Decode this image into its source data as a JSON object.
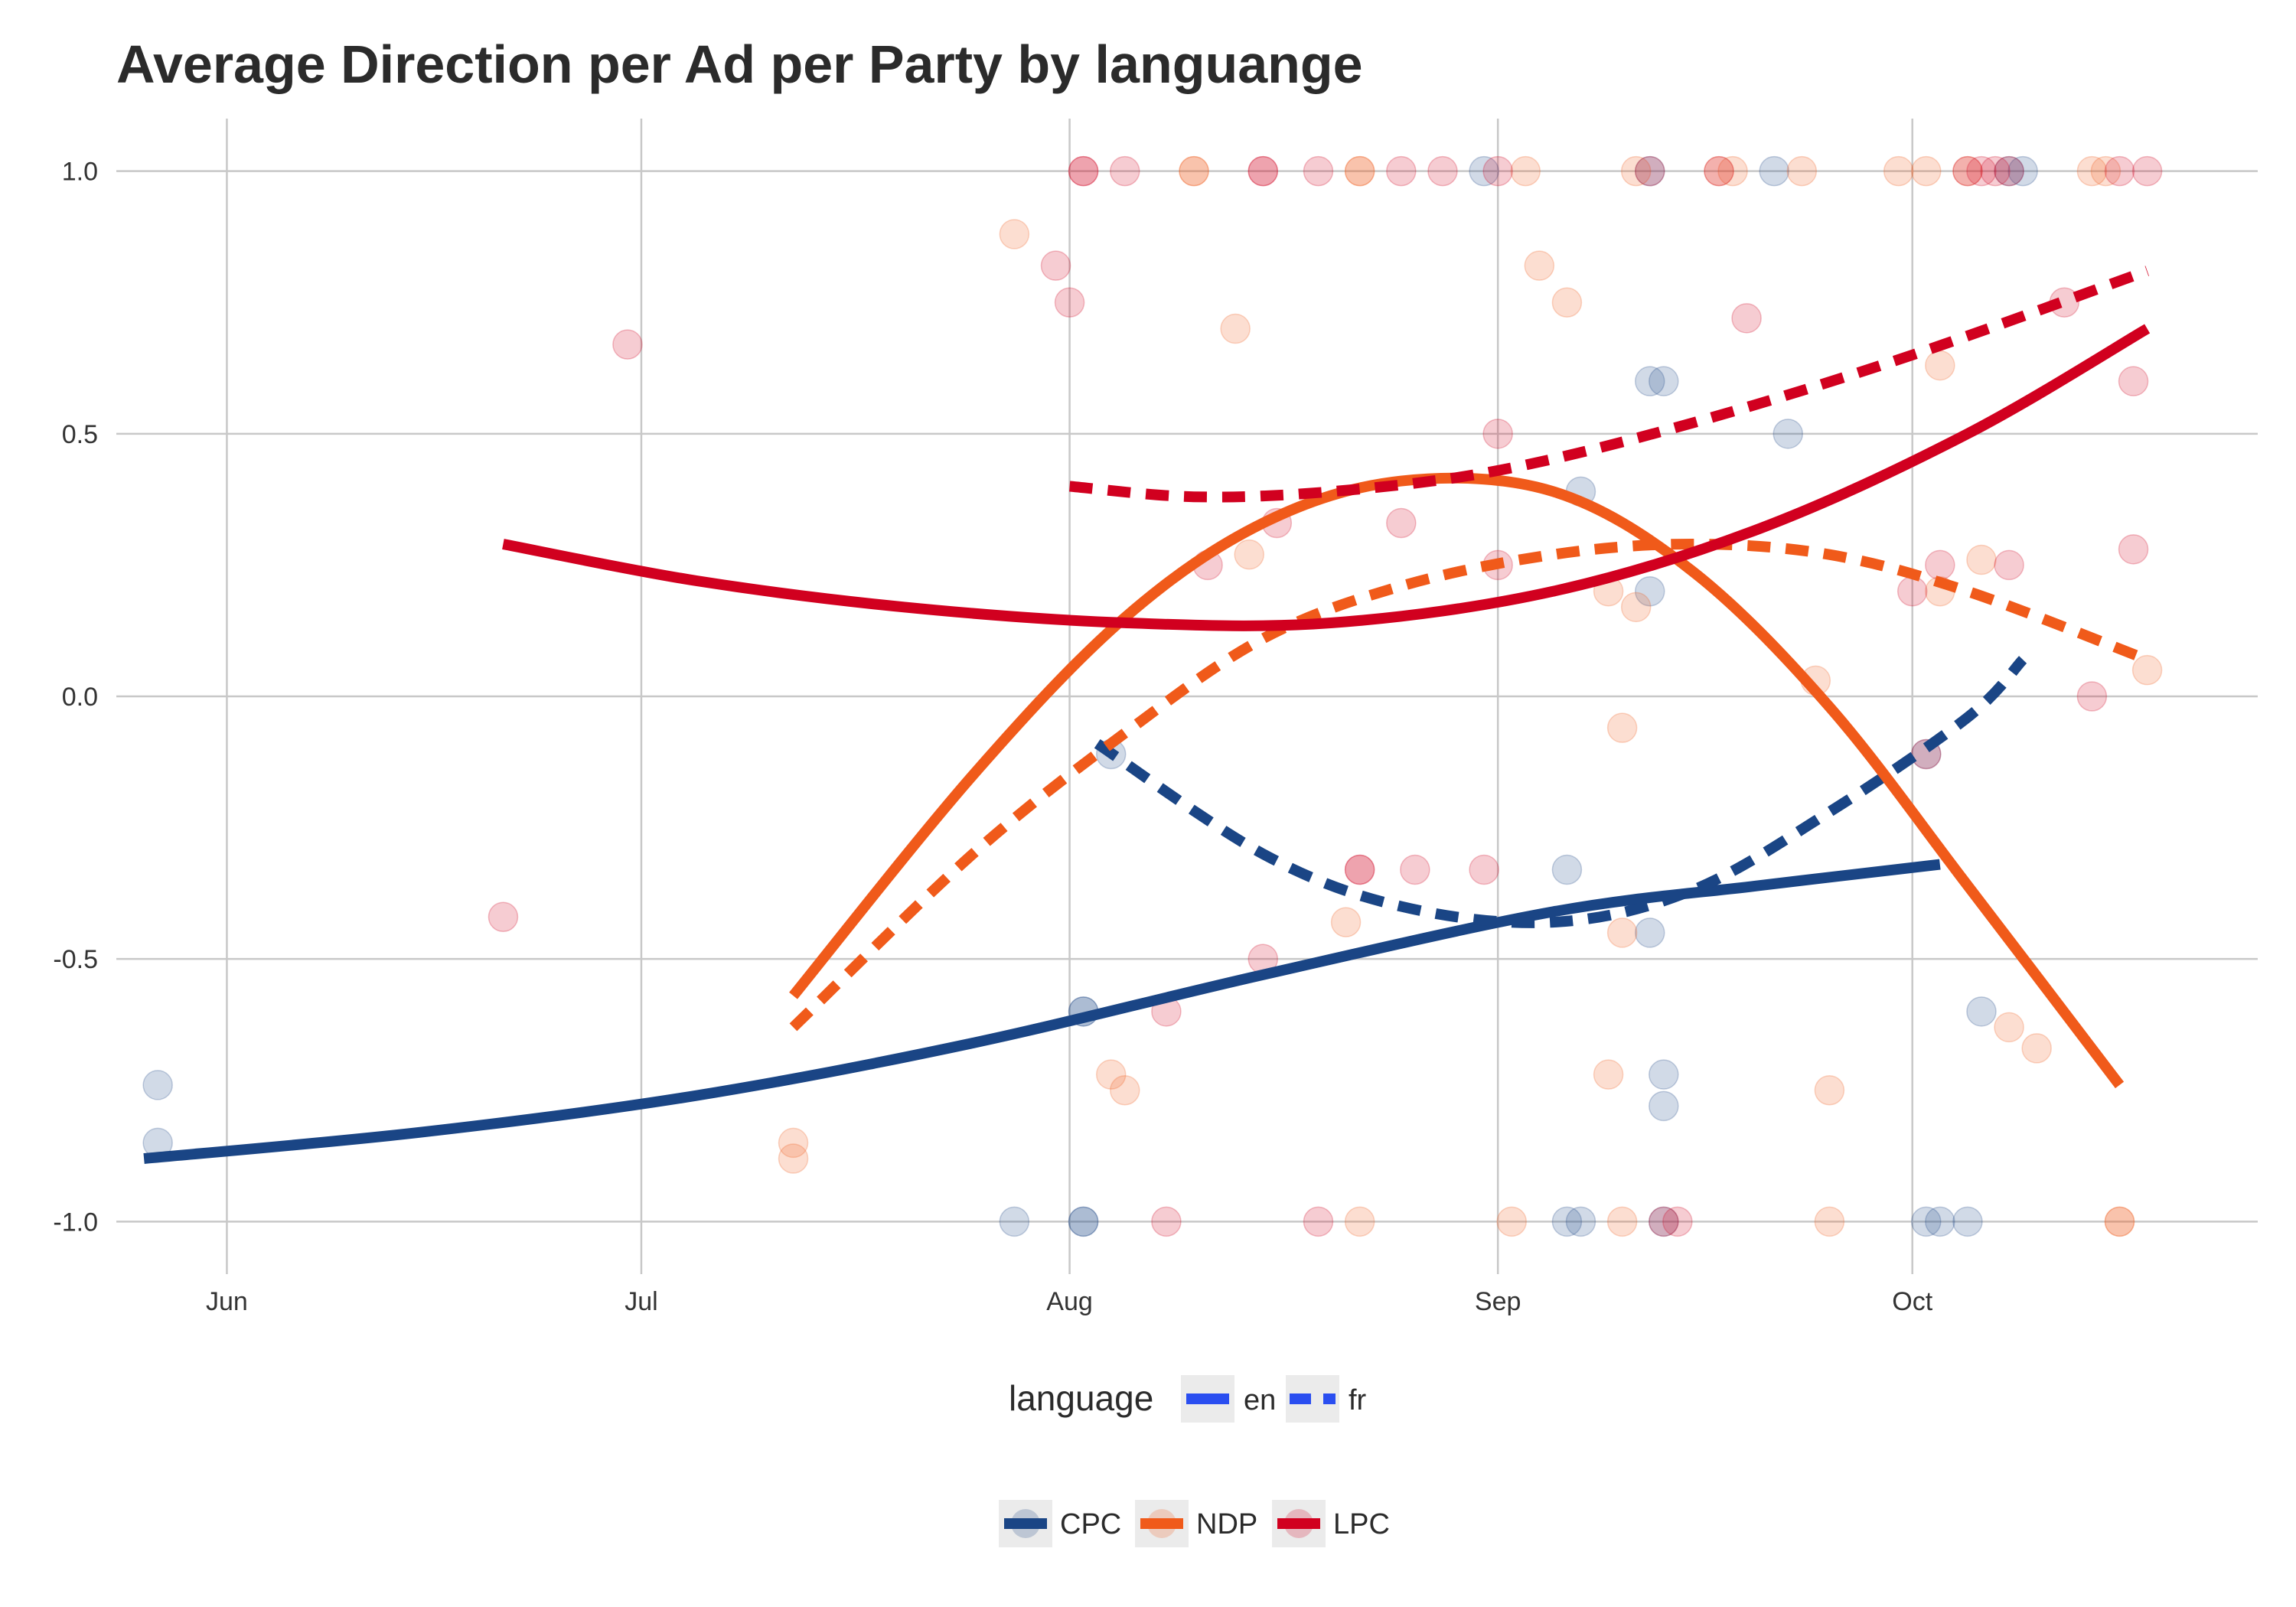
{
  "chart_data": {
    "type": "scatter",
    "title": "Average Direction per Ad per Party by languange",
    "xlabel": "",
    "ylabel": "",
    "x_ticks": [
      "Jun",
      "Jul",
      "Aug",
      "Sep",
      "Oct"
    ],
    "x_tick_dates": [
      "2019-06-01",
      "2019-07-01",
      "2019-08-01",
      "2019-09-01",
      "2019-10-01"
    ],
    "x_range": [
      "2019-05-24",
      "2019-10-26"
    ],
    "y_ticks": [
      "-1.0",
      "-0.5",
      "0.0",
      "0.5",
      "1.0"
    ],
    "ylim": [
      -1.1,
      1.1
    ],
    "grid": true,
    "colors": {
      "CPC": "#1a4585",
      "NDP": "#f05a1a",
      "LPC": "#d1001f",
      "legend_key_blue": "#2a4ef0",
      "legend_bg": "#ebebeb"
    },
    "legend_language": {
      "title": "language",
      "entries": [
        {
          "label": "en",
          "dash": "solid"
        },
        {
          "label": "fr",
          "dash": "dashed"
        }
      ]
    },
    "legend_party": {
      "entries": [
        {
          "label": "CPC",
          "party": "CPC"
        },
        {
          "label": "NDP",
          "party": "NDP"
        },
        {
          "label": "LPC",
          "party": "LPC"
        }
      ]
    },
    "points": [
      {
        "party": "CPC",
        "date": "2019-05-27",
        "y": -0.85
      },
      {
        "party": "CPC",
        "date": "2019-05-27",
        "y": -0.74
      },
      {
        "party": "CPC",
        "date": "2019-07-28",
        "y": -1.0
      },
      {
        "party": "CPC",
        "date": "2019-08-02",
        "y": -0.6
      },
      {
        "party": "CPC",
        "date": "2019-08-02",
        "y": -0.6
      },
      {
        "party": "CPC",
        "date": "2019-08-02",
        "y": -1.0
      },
      {
        "party": "CPC",
        "date": "2019-08-02",
        "y": -1.0
      },
      {
        "party": "CPC",
        "date": "2019-08-04",
        "y": -0.11
      },
      {
        "party": "CPC",
        "date": "2019-08-31",
        "y": 1.0
      },
      {
        "party": "CPC",
        "date": "2019-09-06",
        "y": -0.33
      },
      {
        "party": "CPC",
        "date": "2019-09-06",
        "y": -1.0
      },
      {
        "party": "CPC",
        "date": "2019-09-07",
        "y": -1.0
      },
      {
        "party": "CPC",
        "date": "2019-09-07",
        "y": 0.39
      },
      {
        "party": "CPC",
        "date": "2019-09-12",
        "y": 0.6
      },
      {
        "party": "CPC",
        "date": "2019-09-12",
        "y": 1.0
      },
      {
        "party": "CPC",
        "date": "2019-09-12",
        "y": 0.2
      },
      {
        "party": "CPC",
        "date": "2019-09-12",
        "y": -0.45
      },
      {
        "party": "CPC",
        "date": "2019-09-13",
        "y": 0.6
      },
      {
        "party": "CPC",
        "date": "2019-09-13",
        "y": -0.72
      },
      {
        "party": "CPC",
        "date": "2019-09-13",
        "y": -0.78
      },
      {
        "party": "CPC",
        "date": "2019-09-13",
        "y": -1.0
      },
      {
        "party": "CPC",
        "date": "2019-09-21",
        "y": 1.0
      },
      {
        "party": "CPC",
        "date": "2019-09-22",
        "y": 0.5
      },
      {
        "party": "CPC",
        "date": "2019-10-02",
        "y": -0.11
      },
      {
        "party": "CPC",
        "date": "2019-10-02",
        "y": -1.0
      },
      {
        "party": "CPC",
        "date": "2019-10-03",
        "y": -1.0
      },
      {
        "party": "CPC",
        "date": "2019-10-05",
        "y": -1.0
      },
      {
        "party": "CPC",
        "date": "2019-10-06",
        "y": -0.6
      },
      {
        "party": "CPC",
        "date": "2019-10-08",
        "y": 1.0
      },
      {
        "party": "CPC",
        "date": "2019-10-09",
        "y": 1.0
      },
      {
        "party": "NDP",
        "date": "2019-07-12",
        "y": -0.85
      },
      {
        "party": "NDP",
        "date": "2019-07-12",
        "y": -0.88
      },
      {
        "party": "NDP",
        "date": "2019-07-28",
        "y": 0.88
      },
      {
        "party": "NDP",
        "date": "2019-08-04",
        "y": -0.72
      },
      {
        "party": "NDP",
        "date": "2019-08-05",
        "y": -0.75
      },
      {
        "party": "NDP",
        "date": "2019-08-10",
        "y": 1.0
      },
      {
        "party": "NDP",
        "date": "2019-08-10",
        "y": 1.0
      },
      {
        "party": "NDP",
        "date": "2019-08-13",
        "y": 0.7
      },
      {
        "party": "NDP",
        "date": "2019-08-14",
        "y": 0.27
      },
      {
        "party": "NDP",
        "date": "2019-08-21",
        "y": -0.43
      },
      {
        "party": "NDP",
        "date": "2019-08-22",
        "y": 1.0
      },
      {
        "party": "NDP",
        "date": "2019-08-22",
        "y": 1.0
      },
      {
        "party": "NDP",
        "date": "2019-08-22",
        "y": -1.0
      },
      {
        "party": "NDP",
        "date": "2019-09-02",
        "y": -1.0
      },
      {
        "party": "NDP",
        "date": "2019-09-03",
        "y": 1.0
      },
      {
        "party": "NDP",
        "date": "2019-09-04",
        "y": 0.82
      },
      {
        "party": "NDP",
        "date": "2019-09-06",
        "y": 0.75
      },
      {
        "party": "NDP",
        "date": "2019-09-09",
        "y": 0.2
      },
      {
        "party": "NDP",
        "date": "2019-09-09",
        "y": -0.72
      },
      {
        "party": "NDP",
        "date": "2019-09-10",
        "y": -0.06
      },
      {
        "party": "NDP",
        "date": "2019-09-10",
        "y": -0.45
      },
      {
        "party": "NDP",
        "date": "2019-09-10",
        "y": -1.0
      },
      {
        "party": "NDP",
        "date": "2019-09-11",
        "y": 0.17
      },
      {
        "party": "NDP",
        "date": "2019-09-11",
        "y": 1.0
      },
      {
        "party": "NDP",
        "date": "2019-09-17",
        "y": 1.0
      },
      {
        "party": "NDP",
        "date": "2019-09-18",
        "y": 1.0
      },
      {
        "party": "NDP",
        "date": "2019-09-23",
        "y": 1.0
      },
      {
        "party": "NDP",
        "date": "2019-09-24",
        "y": 0.03
      },
      {
        "party": "NDP",
        "date": "2019-09-25",
        "y": -0.75
      },
      {
        "party": "NDP",
        "date": "2019-09-25",
        "y": -1.0
      },
      {
        "party": "NDP",
        "date": "2019-09-30",
        "y": 1.0
      },
      {
        "party": "NDP",
        "date": "2019-10-02",
        "y": 1.0
      },
      {
        "party": "NDP",
        "date": "2019-10-03",
        "y": 0.63
      },
      {
        "party": "NDP",
        "date": "2019-10-03",
        "y": 0.2
      },
      {
        "party": "NDP",
        "date": "2019-10-05",
        "y": 1.0
      },
      {
        "party": "NDP",
        "date": "2019-10-06",
        "y": 0.26
      },
      {
        "party": "NDP",
        "date": "2019-10-08",
        "y": -0.63
      },
      {
        "party": "NDP",
        "date": "2019-10-10",
        "y": -0.67
      },
      {
        "party": "NDP",
        "date": "2019-10-14",
        "y": 1.0
      },
      {
        "party": "NDP",
        "date": "2019-10-15",
        "y": 1.0
      },
      {
        "party": "NDP",
        "date": "2019-10-16",
        "y": -1.0
      },
      {
        "party": "NDP",
        "date": "2019-10-16",
        "y": -1.0
      },
      {
        "party": "NDP",
        "date": "2019-10-18",
        "y": 0.05
      },
      {
        "party": "LPC",
        "date": "2019-06-21",
        "y": -0.42
      },
      {
        "party": "LPC",
        "date": "2019-06-30",
        "y": 0.67
      },
      {
        "party": "LPC",
        "date": "2019-07-31",
        "y": 0.82
      },
      {
        "party": "LPC",
        "date": "2019-08-01",
        "y": 0.75
      },
      {
        "party": "LPC",
        "date": "2019-08-02",
        "y": 1.0
      },
      {
        "party": "LPC",
        "date": "2019-08-02",
        "y": 1.0
      },
      {
        "party": "LPC",
        "date": "2019-08-05",
        "y": 1.0
      },
      {
        "party": "LPC",
        "date": "2019-08-08",
        "y": -0.6
      },
      {
        "party": "LPC",
        "date": "2019-08-08",
        "y": -1.0
      },
      {
        "party": "LPC",
        "date": "2019-08-11",
        "y": 0.25
      },
      {
        "party": "LPC",
        "date": "2019-08-15",
        "y": 1.0
      },
      {
        "party": "LPC",
        "date": "2019-08-15",
        "y": 1.0
      },
      {
        "party": "LPC",
        "date": "2019-08-15",
        "y": -0.5
      },
      {
        "party": "LPC",
        "date": "2019-08-16",
        "y": 0.33
      },
      {
        "party": "LPC",
        "date": "2019-08-19",
        "y": 1.0
      },
      {
        "party": "LPC",
        "date": "2019-08-19",
        "y": -1.0
      },
      {
        "party": "LPC",
        "date": "2019-08-22",
        "y": -0.33
      },
      {
        "party": "LPC",
        "date": "2019-08-22",
        "y": -0.33
      },
      {
        "party": "LPC",
        "date": "2019-08-25",
        "y": 1.0
      },
      {
        "party": "LPC",
        "date": "2019-08-25",
        "y": 0.33
      },
      {
        "party": "LPC",
        "date": "2019-08-26",
        "y": -0.33
      },
      {
        "party": "LPC",
        "date": "2019-08-28",
        "y": 1.0
      },
      {
        "party": "LPC",
        "date": "2019-08-31",
        "y": -0.33
      },
      {
        "party": "LPC",
        "date": "2019-09-01",
        "y": 1.0
      },
      {
        "party": "LPC",
        "date": "2019-09-01",
        "y": 0.5
      },
      {
        "party": "LPC",
        "date": "2019-09-01",
        "y": 0.25
      },
      {
        "party": "LPC",
        "date": "2019-09-12",
        "y": 1.0
      },
      {
        "party": "LPC",
        "date": "2019-09-13",
        "y": -1.0
      },
      {
        "party": "LPC",
        "date": "2019-09-14",
        "y": -1.0
      },
      {
        "party": "LPC",
        "date": "2019-09-17",
        "y": 1.0
      },
      {
        "party": "LPC",
        "date": "2019-09-19",
        "y": 0.72
      },
      {
        "party": "LPC",
        "date": "2019-10-01",
        "y": 0.2
      },
      {
        "party": "LPC",
        "date": "2019-10-02",
        "y": -0.11
      },
      {
        "party": "LPC",
        "date": "2019-10-03",
        "y": 0.25
      },
      {
        "party": "LPC",
        "date": "2019-10-05",
        "y": 1.0
      },
      {
        "party": "LPC",
        "date": "2019-10-06",
        "y": 1.0
      },
      {
        "party": "LPC",
        "date": "2019-10-07",
        "y": 1.0
      },
      {
        "party": "LPC",
        "date": "2019-10-08",
        "y": 1.0
      },
      {
        "party": "LPC",
        "date": "2019-10-08",
        "y": 0.25
      },
      {
        "party": "LPC",
        "date": "2019-10-12",
        "y": 0.75
      },
      {
        "party": "LPC",
        "date": "2019-10-14",
        "y": 0.0
      },
      {
        "party": "LPC",
        "date": "2019-10-16",
        "y": 1.0
      },
      {
        "party": "LPC",
        "date": "2019-10-17",
        "y": 0.6
      },
      {
        "party": "LPC",
        "date": "2019-10-17",
        "y": 0.28
      },
      {
        "party": "LPC",
        "date": "2019-10-18",
        "y": 1.0
      }
    ],
    "series": [
      {
        "party": "CPC",
        "language": "en",
        "x": [
          "2019-05-26",
          "2019-06-15",
          "2019-07-05",
          "2019-07-25",
          "2019-08-15",
          "2019-09-05",
          "2019-09-20",
          "2019-10-03"
        ],
        "y": [
          -0.88,
          -0.83,
          -0.76,
          -0.66,
          -0.53,
          -0.41,
          -0.36,
          -0.32
        ]
      },
      {
        "party": "CPC",
        "language": "fr",
        "x": [
          "2019-08-03",
          "2019-08-15",
          "2019-08-25",
          "2019-09-05",
          "2019-09-15",
          "2019-09-25",
          "2019-10-05",
          "2019-10-09"
        ],
        "y": [
          -0.09,
          -0.3,
          -0.4,
          -0.43,
          -0.37,
          -0.22,
          -0.04,
          0.07
        ]
      },
      {
        "party": "NDP",
        "language": "en",
        "x": [
          "2019-07-12",
          "2019-07-25",
          "2019-08-05",
          "2019-08-15",
          "2019-08-25",
          "2019-09-05",
          "2019-09-15",
          "2019-09-25",
          "2019-10-05",
          "2019-10-16"
        ],
        "y": [
          -0.57,
          -0.15,
          0.15,
          0.33,
          0.41,
          0.39,
          0.24,
          -0.02,
          -0.36,
          -0.74
        ]
      },
      {
        "party": "NDP",
        "language": "fr",
        "x": [
          "2019-07-12",
          "2019-07-25",
          "2019-08-05",
          "2019-08-15",
          "2019-08-25",
          "2019-09-05",
          "2019-09-15",
          "2019-09-25",
          "2019-10-05",
          "2019-10-18"
        ],
        "y": [
          -0.63,
          -0.3,
          -0.07,
          0.11,
          0.21,
          0.27,
          0.29,
          0.27,
          0.2,
          0.07
        ]
      },
      {
        "party": "LPC",
        "language": "en",
        "x": [
          "2019-06-21",
          "2019-07-05",
          "2019-07-20",
          "2019-08-05",
          "2019-08-20",
          "2019-09-05",
          "2019-09-20",
          "2019-10-05",
          "2019-10-18"
        ],
        "y": [
          0.29,
          0.22,
          0.17,
          0.14,
          0.14,
          0.2,
          0.32,
          0.5,
          0.7
        ]
      },
      {
        "party": "LPC",
        "language": "fr",
        "x": [
          "2019-08-01",
          "2019-08-10",
          "2019-08-20",
          "2019-09-01",
          "2019-09-15",
          "2019-10-01",
          "2019-10-18"
        ],
        "y": [
          0.4,
          0.38,
          0.39,
          0.43,
          0.52,
          0.65,
          0.81
        ]
      }
    ]
  }
}
